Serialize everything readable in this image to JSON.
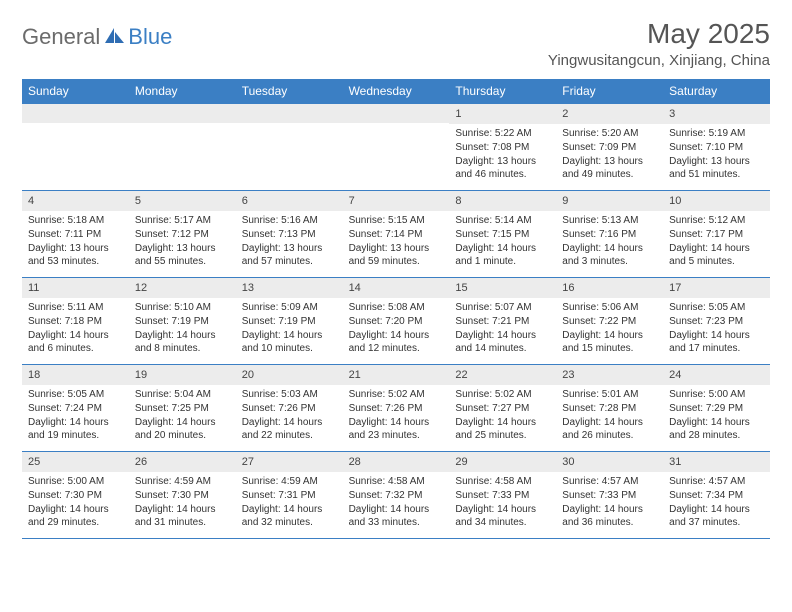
{
  "logo": {
    "part1": "General",
    "part2": "Blue"
  },
  "title": "May 2025",
  "location": "Yingwusitangcun, Xinjiang, China",
  "header_bg": "#3b7fc4",
  "weekdays": [
    "Sunday",
    "Monday",
    "Tuesday",
    "Wednesday",
    "Thursday",
    "Friday",
    "Saturday"
  ],
  "weeks": [
    [
      null,
      null,
      null,
      null,
      {
        "n": "1",
        "sr": "5:22 AM",
        "ss": "7:08 PM",
        "dl": "13 hours and 46 minutes."
      },
      {
        "n": "2",
        "sr": "5:20 AM",
        "ss": "7:09 PM",
        "dl": "13 hours and 49 minutes."
      },
      {
        "n": "3",
        "sr": "5:19 AM",
        "ss": "7:10 PM",
        "dl": "13 hours and 51 minutes."
      }
    ],
    [
      {
        "n": "4",
        "sr": "5:18 AM",
        "ss": "7:11 PM",
        "dl": "13 hours and 53 minutes."
      },
      {
        "n": "5",
        "sr": "5:17 AM",
        "ss": "7:12 PM",
        "dl": "13 hours and 55 minutes."
      },
      {
        "n": "6",
        "sr": "5:16 AM",
        "ss": "7:13 PM",
        "dl": "13 hours and 57 minutes."
      },
      {
        "n": "7",
        "sr": "5:15 AM",
        "ss": "7:14 PM",
        "dl": "13 hours and 59 minutes."
      },
      {
        "n": "8",
        "sr": "5:14 AM",
        "ss": "7:15 PM",
        "dl": "14 hours and 1 minute."
      },
      {
        "n": "9",
        "sr": "5:13 AM",
        "ss": "7:16 PM",
        "dl": "14 hours and 3 minutes."
      },
      {
        "n": "10",
        "sr": "5:12 AM",
        "ss": "7:17 PM",
        "dl": "14 hours and 5 minutes."
      }
    ],
    [
      {
        "n": "11",
        "sr": "5:11 AM",
        "ss": "7:18 PM",
        "dl": "14 hours and 6 minutes."
      },
      {
        "n": "12",
        "sr": "5:10 AM",
        "ss": "7:19 PM",
        "dl": "14 hours and 8 minutes."
      },
      {
        "n": "13",
        "sr": "5:09 AM",
        "ss": "7:19 PM",
        "dl": "14 hours and 10 minutes."
      },
      {
        "n": "14",
        "sr": "5:08 AM",
        "ss": "7:20 PM",
        "dl": "14 hours and 12 minutes."
      },
      {
        "n": "15",
        "sr": "5:07 AM",
        "ss": "7:21 PM",
        "dl": "14 hours and 14 minutes."
      },
      {
        "n": "16",
        "sr": "5:06 AM",
        "ss": "7:22 PM",
        "dl": "14 hours and 15 minutes."
      },
      {
        "n": "17",
        "sr": "5:05 AM",
        "ss": "7:23 PM",
        "dl": "14 hours and 17 minutes."
      }
    ],
    [
      {
        "n": "18",
        "sr": "5:05 AM",
        "ss": "7:24 PM",
        "dl": "14 hours and 19 minutes."
      },
      {
        "n": "19",
        "sr": "5:04 AM",
        "ss": "7:25 PM",
        "dl": "14 hours and 20 minutes."
      },
      {
        "n": "20",
        "sr": "5:03 AM",
        "ss": "7:26 PM",
        "dl": "14 hours and 22 minutes."
      },
      {
        "n": "21",
        "sr": "5:02 AM",
        "ss": "7:26 PM",
        "dl": "14 hours and 23 minutes."
      },
      {
        "n": "22",
        "sr": "5:02 AM",
        "ss": "7:27 PM",
        "dl": "14 hours and 25 minutes."
      },
      {
        "n": "23",
        "sr": "5:01 AM",
        "ss": "7:28 PM",
        "dl": "14 hours and 26 minutes."
      },
      {
        "n": "24",
        "sr": "5:00 AM",
        "ss": "7:29 PM",
        "dl": "14 hours and 28 minutes."
      }
    ],
    [
      {
        "n": "25",
        "sr": "5:00 AM",
        "ss": "7:30 PM",
        "dl": "14 hours and 29 minutes."
      },
      {
        "n": "26",
        "sr": "4:59 AM",
        "ss": "7:30 PM",
        "dl": "14 hours and 31 minutes."
      },
      {
        "n": "27",
        "sr": "4:59 AM",
        "ss": "7:31 PM",
        "dl": "14 hours and 32 minutes."
      },
      {
        "n": "28",
        "sr": "4:58 AM",
        "ss": "7:32 PM",
        "dl": "14 hours and 33 minutes."
      },
      {
        "n": "29",
        "sr": "4:58 AM",
        "ss": "7:33 PM",
        "dl": "14 hours and 34 minutes."
      },
      {
        "n": "30",
        "sr": "4:57 AM",
        "ss": "7:33 PM",
        "dl": "14 hours and 36 minutes."
      },
      {
        "n": "31",
        "sr": "4:57 AM",
        "ss": "7:34 PM",
        "dl": "14 hours and 37 minutes."
      }
    ]
  ],
  "labels": {
    "sunrise": "Sunrise: ",
    "sunset": "Sunset: ",
    "daylight": "Daylight: "
  }
}
